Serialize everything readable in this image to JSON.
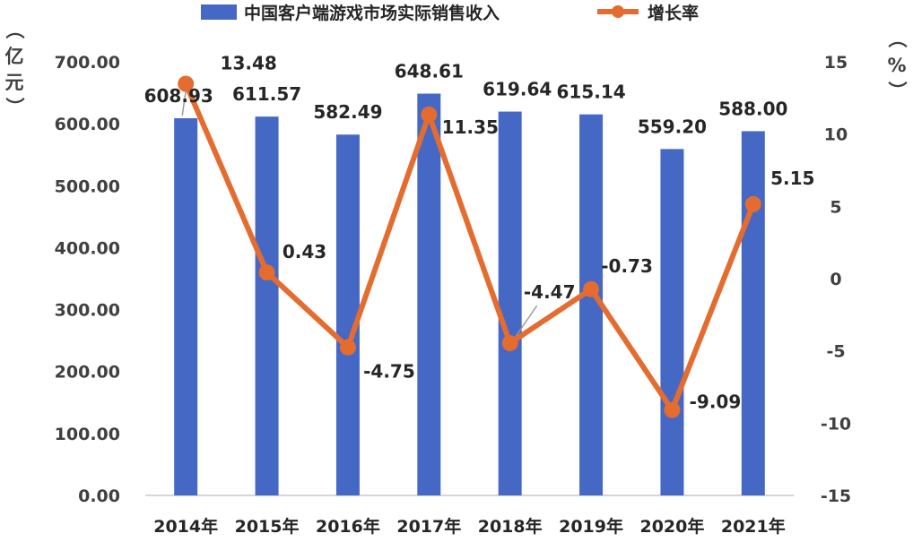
{
  "chart_data": {
    "type": "bar",
    "categories": [
      "2014年",
      "2015年",
      "2016年",
      "2017年",
      "2018年",
      "2019年",
      "2020年",
      "2021年"
    ],
    "series": [
      {
        "name": "中国客户端游戏市场实际销售收入",
        "kind": "bar",
        "axis": "left",
        "color": "#4668c5",
        "values": [
          608.93,
          611.57,
          582.49,
          648.61,
          619.64,
          615.14,
          559.2,
          588.0
        ],
        "labels": [
          "608.93",
          "611.57",
          "582.49",
          "648.61",
          "619.64",
          "615.14",
          "559.20",
          "588.00"
        ]
      },
      {
        "name": "增长率",
        "kind": "line",
        "axis": "right",
        "color": "#e46c2f",
        "values": [
          13.48,
          0.43,
          -4.75,
          11.35,
          -4.47,
          -0.73,
          -9.09,
          5.15
        ],
        "labels": [
          "13.48",
          "0.43",
          "-4.75",
          "11.35",
          "-4.47",
          "-0.73",
          "-9.09",
          "5.15"
        ]
      }
    ],
    "y_left": {
      "unit_label": [
        "（",
        "亿",
        "元",
        "）"
      ],
      "range": [
        0,
        700
      ],
      "ticks": [
        "0.00",
        "100.00",
        "200.00",
        "300.00",
        "400.00",
        "500.00",
        "600.00",
        "700.00"
      ]
    },
    "y_right": {
      "unit_label": [
        "（",
        "%",
        "）"
      ],
      "range": [
        -15,
        15
      ],
      "ticks": [
        "-15",
        "-10",
        "-5",
        "0",
        "5",
        "10",
        "15"
      ]
    },
    "legend_position": "top",
    "grid": false
  }
}
